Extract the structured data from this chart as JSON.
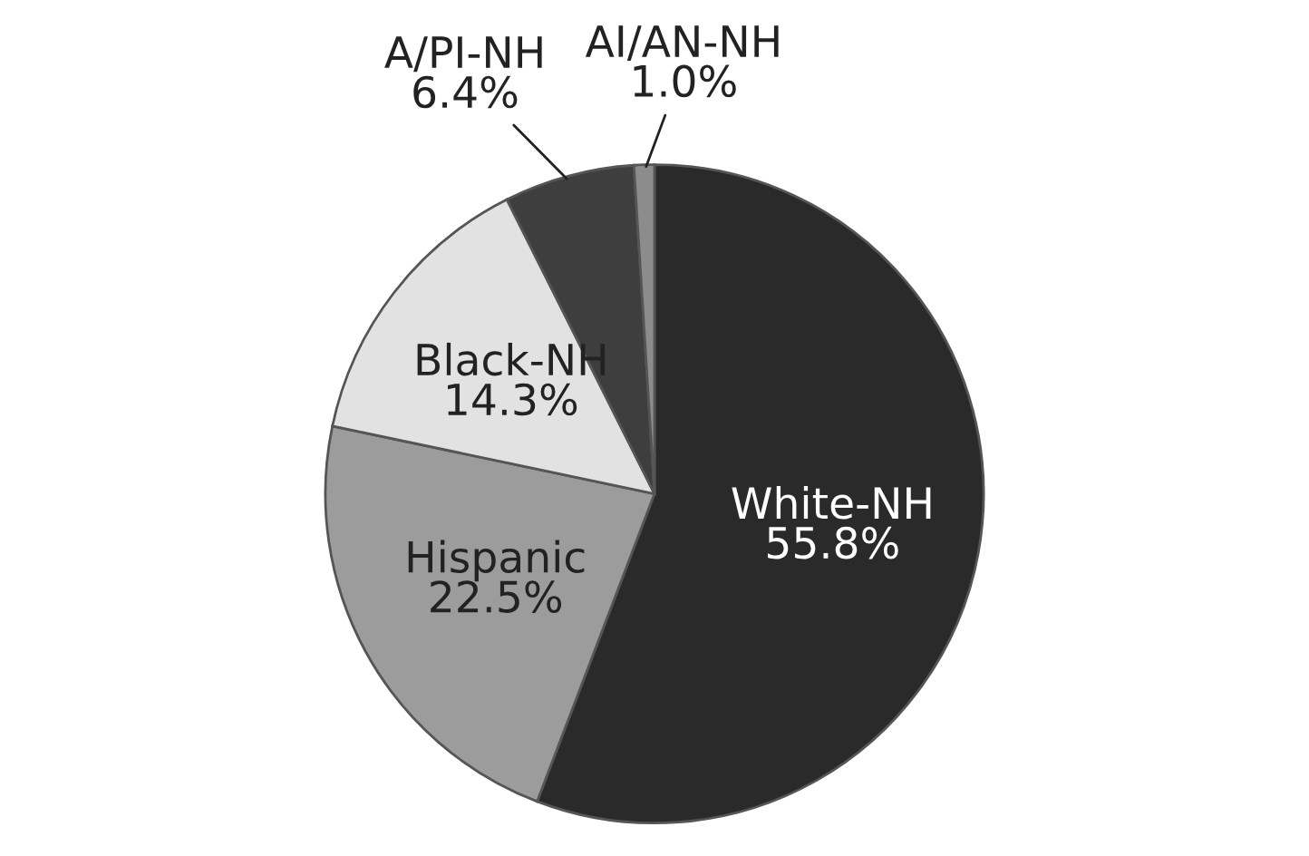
{
  "chart_data": {
    "type": "pie",
    "categories": [
      "White-NH",
      "Hispanic",
      "Black-NH",
      "A/PI-NH",
      "AI/AN-NH"
    ],
    "values": [
      55.8,
      22.5,
      14.3,
      6.4,
      1.0
    ],
    "value_labels": [
      "55.8%",
      "22.5%",
      "14.3%",
      "6.4%",
      "1.0%"
    ],
    "colors": [
      "#2a2a2a",
      "#9c9c9c",
      "#e2e2e2",
      "#3e3e3e",
      "#8c8c8c"
    ]
  }
}
